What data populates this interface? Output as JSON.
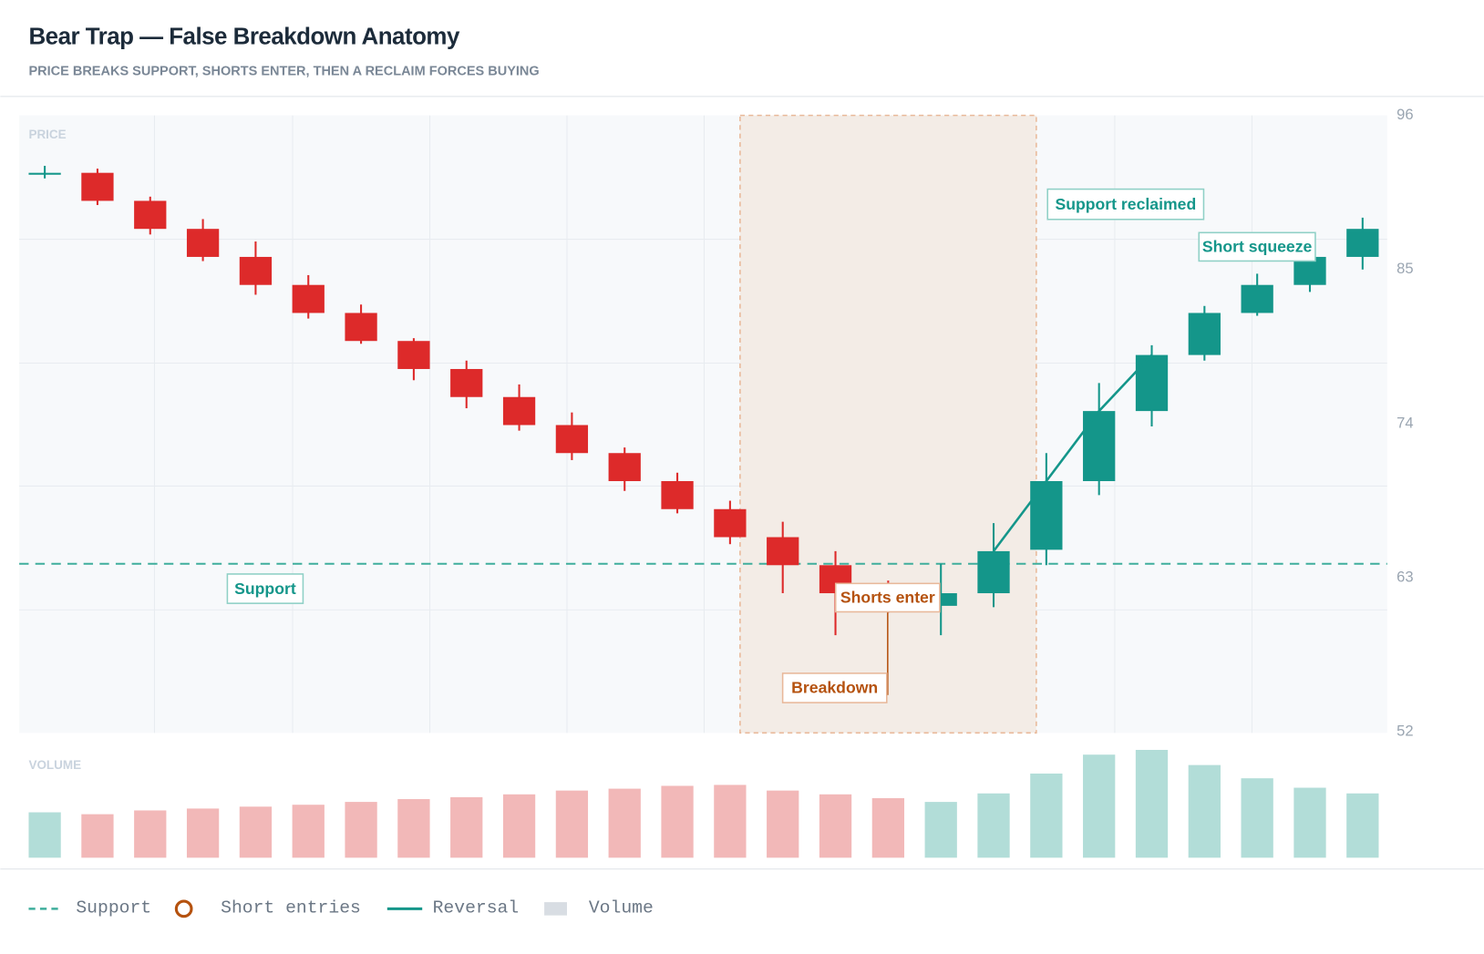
{
  "header": {
    "title": "Bear Trap — False Breakdown Anatomy",
    "subtitle": "PRICE BREAKS SUPPORT, SHORTS ENTER, THEN A RECLAIM FORCES BUYING"
  },
  "chart_data": {
    "type": "candlestick",
    "price_label": "PRICE",
    "volume_label": "VOLUME",
    "open": [
      91.8,
      91.9,
      89.9,
      87.9,
      85.9,
      83.9,
      81.9,
      79.9,
      77.9,
      75.9,
      73.9,
      71.9,
      69.9,
      67.9,
      65.9,
      63.9,
      61.9,
      61.0,
      61.9,
      65.0,
      69.9,
      74.9,
      78.9,
      81.9,
      83.9,
      85.9
    ],
    "high": [
      92.4,
      92.2,
      90.2,
      88.6,
      87.0,
      84.6,
      82.5,
      80.1,
      78.5,
      76.8,
      74.8,
      72.3,
      70.5,
      68.5,
      67.0,
      64.9,
      62.8,
      64.0,
      66.9,
      71.9,
      76.9,
      79.6,
      82.4,
      84.7,
      86.5,
      88.7
    ],
    "low": [
      91.5,
      89.6,
      87.5,
      85.6,
      83.2,
      81.5,
      79.7,
      77.1,
      75.1,
      73.5,
      71.4,
      69.2,
      67.6,
      65.4,
      61.9,
      58.9,
      60.5,
      58.9,
      60.9,
      63.9,
      68.9,
      73.8,
      78.5,
      81.7,
      83.4,
      85.0
    ],
    "close": [
      91.9,
      89.9,
      87.9,
      85.9,
      83.9,
      81.9,
      79.9,
      77.9,
      75.9,
      73.9,
      71.9,
      69.9,
      67.9,
      65.9,
      63.9,
      61.9,
      61.2,
      61.9,
      64.9,
      69.9,
      74.9,
      78.9,
      81.9,
      83.9,
      85.9,
      87.9
    ],
    "volume": [
      48,
      46,
      50,
      52,
      54,
      56,
      59,
      62,
      64,
      67,
      71,
      73,
      76,
      77,
      71,
      67,
      63,
      59,
      68,
      89,
      109,
      114,
      98,
      84,
      74,
      68
    ],
    "up_color": "#14968a",
    "down_color": "#dd2a2a",
    "up_volume_color": "#b2ddd8",
    "down_volume_color": "#f2b8b8",
    "ylim": [
      52,
      96
    ],
    "yticks": [
      52,
      63,
      74,
      85,
      96
    ],
    "support": 64,
    "support_color": "#3fae9c",
    "annotations": [
      {
        "text": "Support"
      },
      {
        "text": "Breakdown"
      },
      {
        "text": "Shorts enter"
      },
      {
        "text": "Support reclaimed"
      },
      {
        "text": "Short squeeze"
      }
    ],
    "legend": [
      {
        "name": "Support",
        "color": "#3fae9c"
      },
      {
        "name": "Short entries",
        "color": "#b5520f"
      },
      {
        "name": "Reversal",
        "color": "#14968a"
      },
      {
        "name": "Volume",
        "color": "#d8dde3"
      }
    ]
  }
}
